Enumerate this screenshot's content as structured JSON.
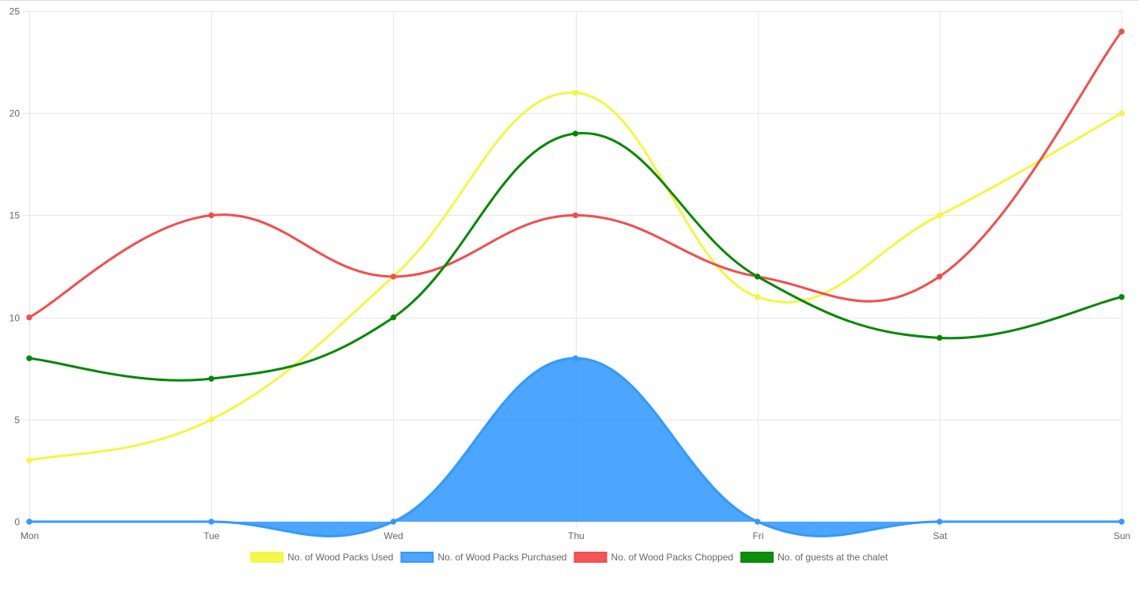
{
  "chart_data": {
    "type": "line",
    "title": "",
    "xlabel": "",
    "ylabel": "",
    "categories": [
      "Mon",
      "Tue",
      "Wed",
      "Thu",
      "Fri",
      "Sat",
      "Sun"
    ],
    "ylim": [
      0,
      25
    ],
    "yticks": [
      0,
      5,
      10,
      15,
      20,
      25
    ],
    "grid": true,
    "legend_position": "bottom",
    "series": [
      {
        "name": "No. of Wood Packs Used",
        "values": [
          3,
          5,
          12,
          21,
          11,
          15,
          20
        ],
        "color": "#f5f542",
        "fill": false
      },
      {
        "name": "No. of Wood Packs Purchased",
        "values": [
          0,
          0,
          0,
          8,
          0,
          0,
          0
        ],
        "color": "#3399ff",
        "fill": true
      },
      {
        "name": "No. of Wood Packs Chopped",
        "values": [
          10,
          15,
          12,
          15,
          12,
          12,
          24
        ],
        "color": "#f24d4d",
        "fill": false
      },
      {
        "name": "No. of guests at the chalet",
        "values": [
          8,
          7,
          10,
          19,
          12,
          9,
          11
        ],
        "color": "#008800",
        "fill": false
      }
    ]
  }
}
